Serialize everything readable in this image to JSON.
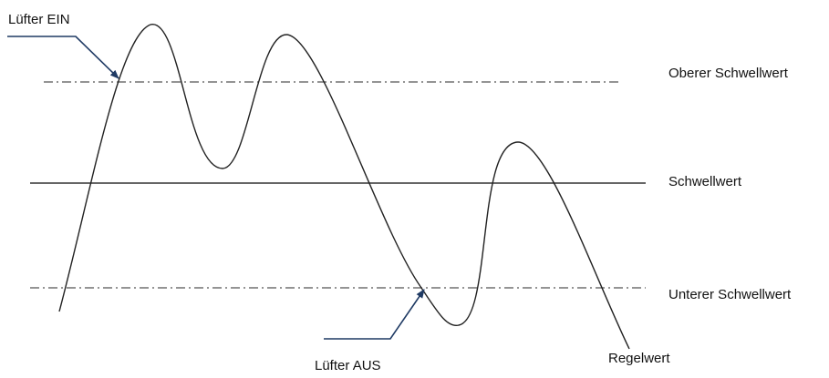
{
  "labels": {
    "fan_on": "Lüfter EIN",
    "fan_off": "Lüfter AUS",
    "upper_threshold": "Oberer Schwellwert",
    "threshold": "Schwellwert",
    "lower_threshold": "Unterer Schwellwert",
    "control_value": "Regelwert"
  },
  "colors": {
    "curve": "#222222",
    "threshold_line": "#333333",
    "dashed_lines": "#555555",
    "callout": "#1f3a64",
    "text": "#111111"
  }
}
